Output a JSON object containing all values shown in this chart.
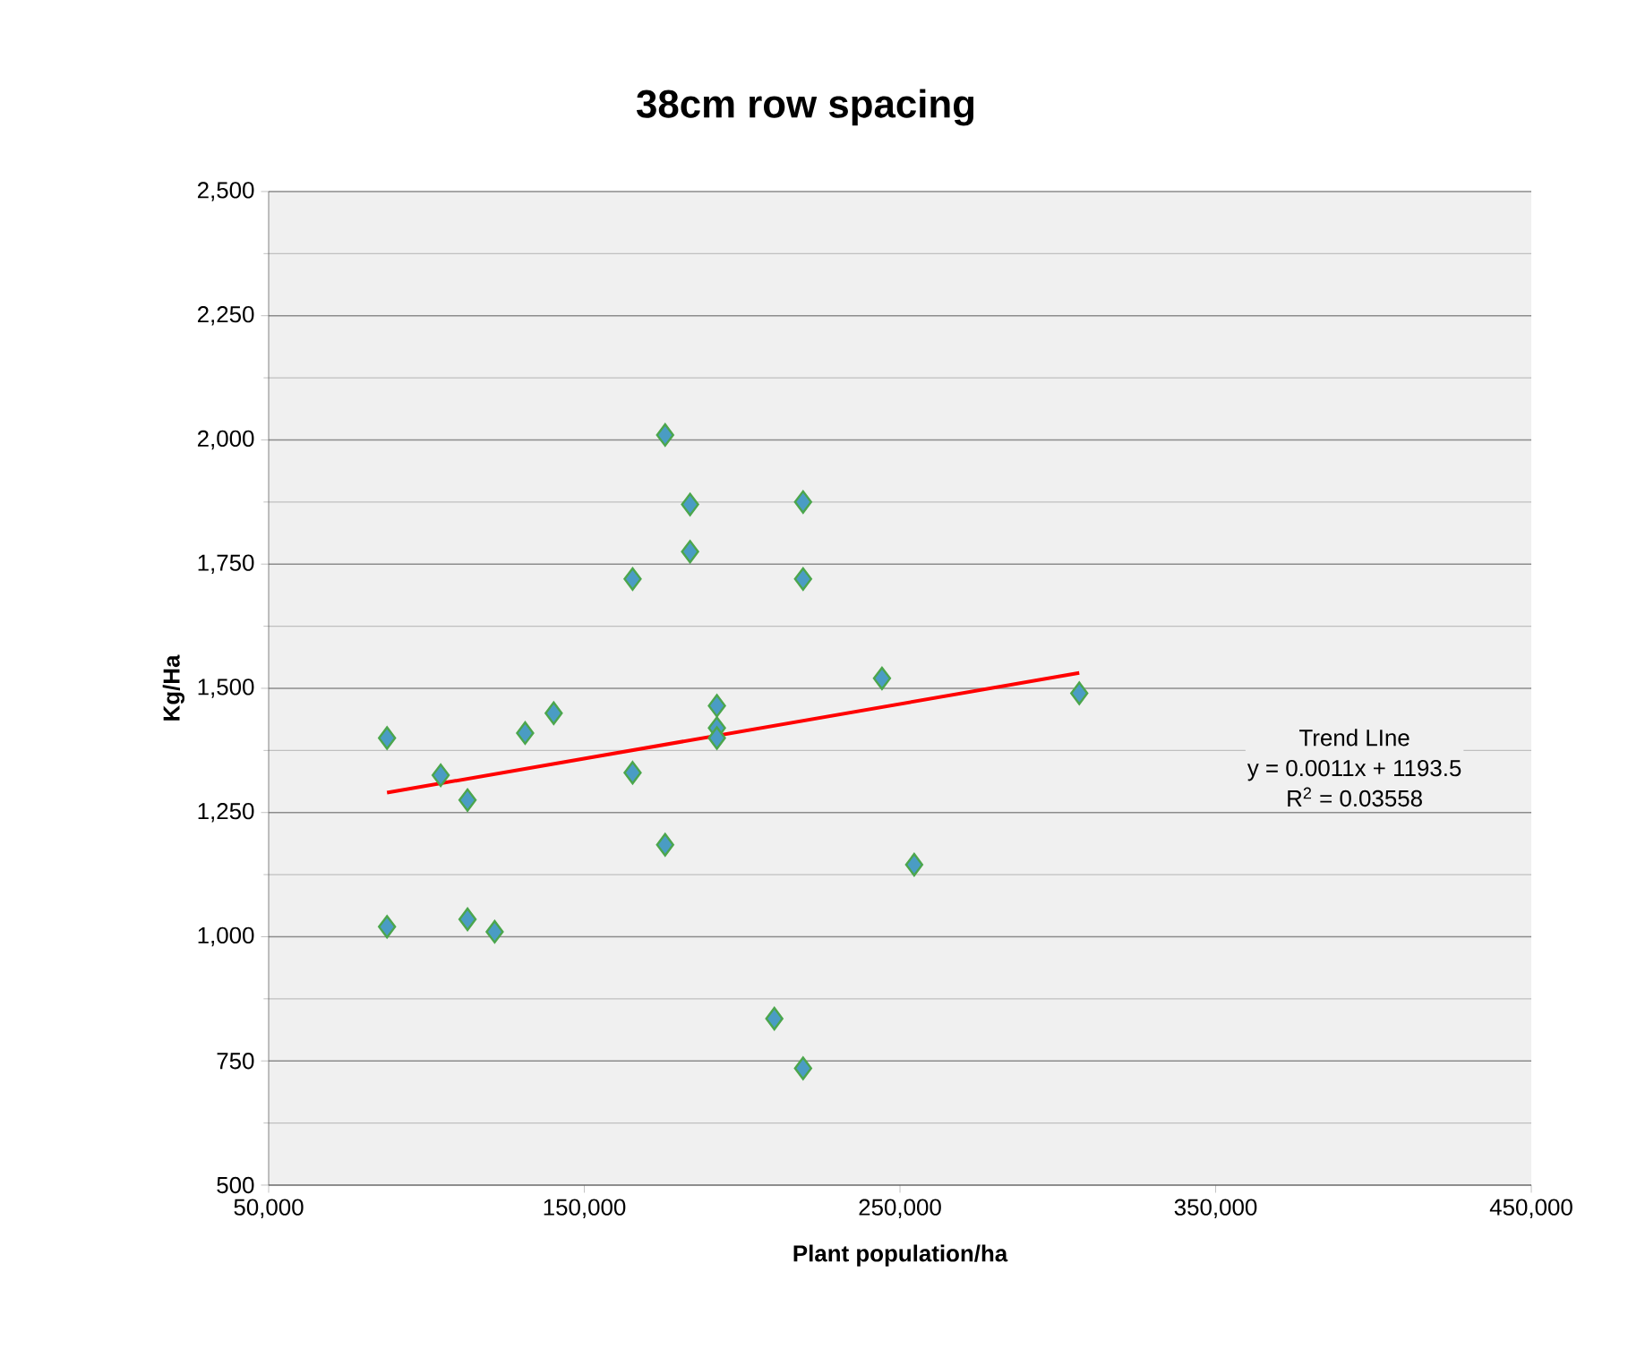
{
  "chart_data": {
    "type": "scatter",
    "title": "38cm row spacing",
    "xlabel": "Plant population/ha",
    "ylabel": "Kg/Ha",
    "annotations": [
      "Trend LIne",
      "y = 0.0011x + 1193.5",
      "R$^{2}$ = 0.03558"
    ],
    "series": [
      {
        "color": "#4a9cc4",
        "marker": "diamond",
        "x": [
          87500,
          104500,
          113000,
          87500,
          113000,
          121600,
          131250,
          140300,
          165300,
          165300,
          175600,
          175600,
          183500,
          183500,
          192000,
          192000,
          192000,
          210200,
          219300,
          219300,
          219300,
          244300,
          254500,
          306800
        ],
        "values": [
          1400,
          1325,
          1275,
          1020,
          1035,
          1010,
          1410,
          1450,
          1330,
          1720,
          2010,
          1185,
          1870,
          1775,
          1465,
          1420,
          1400,
          835,
          1875,
          1720,
          735,
          1520,
          1145,
          1490
        ]
      },
      {
        "type": "line",
        "color": "#ff0000",
        "marker": "none",
        "x": [
          87500,
          306800
        ],
        "values": [
          1290,
          1531
        ]
      }
    ],
    "xlim": [
      50000,
      450000
    ],
    "ylim": [
      500,
      2500
    ],
    "xticks": [
      {
        "value": 50000,
        "label": "50,000"
      },
      {
        "value": 150000,
        "label": "150,000"
      },
      {
        "value": 250000,
        "label": "250,000"
      },
      {
        "value": 350000,
        "label": "350,000"
      },
      {
        "value": 450000,
        "label": "450,000"
      }
    ],
    "yticks": [
      {
        "value": 500,
        "label": "500"
      },
      {
        "value": 750,
        "label": "750"
      },
      {
        "value": 1000,
        "label": "1,000"
      },
      {
        "value": 1250,
        "label": "1,250"
      },
      {
        "value": 1500,
        "label": "1,500"
      },
      {
        "value": 1750,
        "label": "1,750"
      },
      {
        "value": 2000,
        "label": "2,000"
      },
      {
        "value": 2250,
        "label": "2,250"
      },
      {
        "value": 2500,
        "label": "2,500"
      }
    ],
    "grid": "y"
  }
}
